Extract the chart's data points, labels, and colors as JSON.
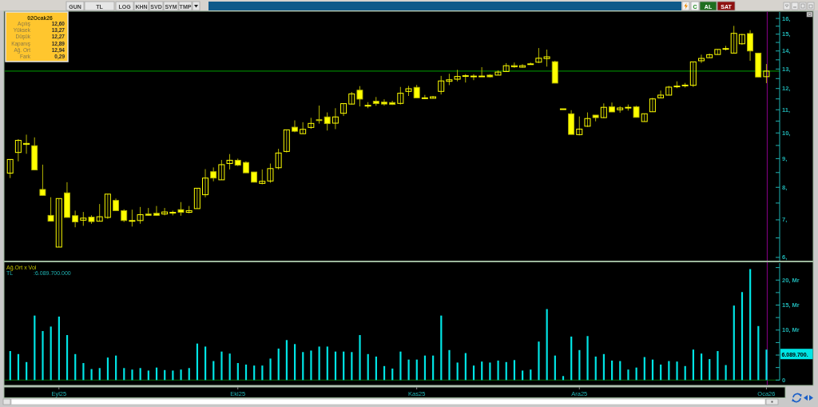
{
  "chart_data": [
    {
      "type": "candlestick",
      "log": true,
      "color": "#ffff00",
      "tick_labels": "y",
      "categories": [
        null,
        null,
        null,
        null,
        null,
        null,
        "Eyl25",
        null,
        null,
        null,
        null,
        null,
        null,
        null,
        null,
        null,
        null,
        null,
        null,
        null,
        null,
        null,
        null,
        null,
        null,
        null,
        null,
        null,
        "Eki25",
        null,
        null,
        null,
        null,
        null,
        null,
        null,
        null,
        null,
        null,
        null,
        null,
        null,
        null,
        null,
        null,
        null,
        null,
        null,
        null,
        null,
        "Kas25",
        null,
        null,
        null,
        null,
        null,
        null,
        null,
        null,
        null,
        null,
        null,
        null,
        null,
        null,
        null,
        null,
        null,
        null,
        null,
        "Ara25",
        null,
        null,
        null,
        null,
        null,
        null,
        null,
        null,
        null,
        null,
        null,
        null,
        null,
        null,
        null,
        null,
        null,
        null,
        null,
        null,
        null,
        null,
        "Oca26"
      ],
      "ohlc": [
        [
          8.48,
          8.97,
          8.31,
          8.97
        ],
        [
          9.23,
          9.75,
          8.9,
          9.7
        ],
        [
          9.54,
          9.93,
          9.18,
          9.58
        ],
        [
          9.49,
          9.82,
          8.59,
          8.59
        ],
        [
          7.93,
          8.78,
          7.74,
          7.74
        ],
        [
          7.13,
          7.68,
          6.96,
          6.96
        ],
        [
          6.26,
          7.64,
          6.26,
          7.64
        ],
        [
          7.82,
          8.17,
          7.07,
          7.07
        ],
        [
          7.12,
          7.27,
          6.79,
          6.94
        ],
        [
          6.99,
          7.23,
          6.83,
          7.05
        ],
        [
          7.08,
          7.13,
          6.89,
          6.95
        ],
        [
          6.96,
          7.47,
          6.96,
          7.09
        ],
        [
          7.07,
          7.78,
          7.03,
          7.78
        ],
        [
          7.58,
          7.64,
          7.27,
          7.27
        ],
        [
          7.27,
          7.31,
          6.94,
          6.98
        ],
        [
          6.98,
          7.3,
          6.81,
          6.98
        ],
        [
          6.98,
          7.38,
          6.89,
          7.15
        ],
        [
          7.17,
          7.35,
          7.12,
          7.13
        ],
        [
          7.19,
          7.41,
          7.12,
          7.13
        ],
        [
          7.17,
          7.35,
          7.13,
          7.23
        ],
        [
          7.22,
          7.27,
          7.13,
          7.22
        ],
        [
          7.3,
          7.53,
          7.12,
          7.22
        ],
        [
          7.22,
          7.41,
          7.19,
          7.27
        ],
        [
          7.33,
          7.97,
          7.33,
          7.97
        ],
        [
          7.76,
          8.62,
          7.68,
          8.31
        ],
        [
          8.53,
          8.68,
          8.2,
          8.31
        ],
        [
          8.25,
          8.95,
          8.25,
          8.78
        ],
        [
          8.82,
          9.17,
          8.61,
          8.94
        ],
        [
          8.94,
          9.0,
          8.73,
          8.76
        ],
        [
          8.86,
          8.9,
          8.49,
          8.49
        ],
        [
          8.52,
          8.52,
          8.17,
          8.17
        ],
        [
          8.13,
          8.61,
          8.1,
          8.2
        ],
        [
          8.21,
          8.82,
          8.15,
          8.64
        ],
        [
          8.67,
          9.37,
          8.61,
          9.21
        ],
        [
          9.27,
          10.13,
          9.23,
          10.13
        ],
        [
          10.24,
          10.53,
          10.03,
          10.07
        ],
        [
          9.97,
          10.45,
          9.97,
          10.15
        ],
        [
          10.23,
          10.64,
          10.17,
          10.4
        ],
        [
          10.56,
          11.19,
          10.39,
          10.52
        ],
        [
          10.68,
          10.88,
          10.1,
          10.39
        ],
        [
          10.41,
          11.07,
          10.16,
          10.68
        ],
        [
          10.84,
          11.28,
          10.72,
          11.28
        ],
        [
          11.26,
          11.83,
          11.24,
          11.74
        ],
        [
          11.92,
          12.12,
          11.15,
          11.49
        ],
        [
          11.2,
          11.35,
          11.07,
          11.2
        ],
        [
          11.39,
          11.59,
          11.18,
          11.28
        ],
        [
          11.35,
          11.48,
          11.19,
          11.26
        ],
        [
          11.33,
          11.41,
          11.22,
          11.24
        ],
        [
          11.29,
          12.08,
          11.24,
          11.77
        ],
        [
          11.86,
          12.13,
          11.64,
          11.99
        ],
        [
          12.06,
          12.18,
          11.55,
          11.55
        ],
        [
          11.55,
          11.69,
          11.49,
          11.55
        ],
        [
          11.53,
          11.64,
          11.52,
          11.6
        ],
        [
          11.86,
          12.64,
          11.71,
          12.38
        ],
        [
          12.36,
          12.75,
          12.17,
          12.44
        ],
        [
          12.47,
          12.96,
          12.36,
          12.61
        ],
        [
          12.65,
          12.73,
          12.3,
          12.65
        ],
        [
          12.63,
          12.73,
          12.42,
          12.63
        ],
        [
          12.62,
          13.1,
          12.62,
          12.63
        ],
        [
          12.68,
          12.73,
          12.56,
          12.59
        ],
        [
          12.68,
          12.93,
          12.68,
          12.84
        ],
        [
          12.87,
          13.32,
          12.87,
          13.18
        ],
        [
          13.12,
          13.35,
          13.07,
          13.18
        ],
        [
          13.1,
          13.26,
          13.08,
          13.18
        ],
        [
          13.28,
          13.35,
          13.25,
          13.28
        ],
        [
          13.37,
          14.17,
          13.32,
          13.59
        ],
        [
          13.57,
          14.08,
          13.13,
          13.67
        ],
        [
          13.4,
          13.45,
          12.27,
          12.27
        ],
        [
          11.04,
          11.04,
          11.04,
          11.04
        ],
        [
          10.82,
          10.98,
          9.94,
          9.94
        ],
        [
          9.93,
          10.7,
          9.9,
          10.16
        ],
        [
          10.28,
          10.88,
          10.25,
          10.61
        ],
        [
          10.76,
          10.76,
          10.49,
          10.65
        ],
        [
          10.65,
          11.29,
          10.63,
          11.11
        ],
        [
          11.13,
          11.33,
          10.9,
          10.9
        ],
        [
          11.0,
          11.16,
          10.87,
          11.08
        ],
        [
          11.11,
          11.24,
          10.96,
          11.11
        ],
        [
          11.13,
          11.18,
          10.66,
          10.66
        ],
        [
          10.48,
          10.82,
          10.48,
          10.82
        ],
        [
          10.91,
          11.55,
          10.91,
          11.5
        ],
        [
          11.55,
          11.9,
          11.55,
          11.68
        ],
        [
          11.68,
          12.13,
          11.68,
          12.07
        ],
        [
          12.12,
          12.36,
          12.02,
          12.12
        ],
        [
          12.17,
          12.28,
          12.05,
          12.17
        ],
        [
          12.16,
          13.39,
          12.08,
          13.39
        ],
        [
          13.45,
          13.79,
          13.33,
          13.58
        ],
        [
          13.62,
          13.85,
          13.62,
          13.79
        ],
        [
          13.8,
          14.09,
          13.8,
          14.09
        ],
        [
          14.14,
          14.3,
          14.03,
          14.14
        ],
        [
          13.88,
          15.52,
          13.88,
          15.05
        ],
        [
          14.42,
          15.02,
          14.36,
          14.98
        ],
        [
          15.04,
          15.25,
          13.45,
          14.0
        ],
        [
          13.88,
          13.88,
          12.58,
          12.58
        ],
        [
          12.6,
          13.27,
          12.27,
          12.89
        ]
      ],
      "ylim": [
        5.92,
        16.43
      ],
      "yticks": [
        {
          "value": 6,
          "label": "6,"
        },
        {
          "value": 6.5,
          "label": null
        },
        {
          "value": 7,
          "label": "7,"
        },
        {
          "value": 7.5,
          "label": null
        },
        {
          "value": 8,
          "label": "8,"
        },
        {
          "value": 8.5,
          "label": null
        },
        {
          "value": 9,
          "label": "9,"
        },
        {
          "value": 9.5,
          "label": null
        },
        {
          "value": 10,
          "label": "10,"
        },
        {
          "value": 10.5,
          "label": null
        },
        {
          "value": 11,
          "label": "11,"
        },
        {
          "value": 11.5,
          "label": null
        },
        {
          "value": 12,
          "label": "12,"
        },
        {
          "value": 12.5,
          "label": null
        },
        {
          "value": 13,
          "label": "13,"
        },
        {
          "value": 13.5,
          "label": null
        },
        {
          "value": 14,
          "label": "14,"
        },
        {
          "value": 14.5,
          "label": null
        },
        {
          "value": 15,
          "label": "15,"
        },
        {
          "value": 15.5,
          "label": null
        },
        {
          "value": 16,
          "label": "16,"
        }
      ],
      "ref_lines": [
        {
          "axis": "x",
          "value": "Oca26",
          "color": "#8b008b"
        },
        {
          "axis": "y",
          "value": 12.89,
          "color": "#00a000"
        }
      ]
    },
    {
      "type": "bar",
      "color": "#00e5e5",
      "title": "Ağ.Ort x Vol",
      "subtitle": "TL",
      "categories": [
        null,
        null,
        null,
        null,
        null,
        null,
        "Eyl25",
        null,
        null,
        null,
        null,
        null,
        null,
        null,
        null,
        null,
        null,
        null,
        null,
        null,
        null,
        null,
        null,
        null,
        null,
        null,
        null,
        null,
        "Eki25",
        null,
        null,
        null,
        null,
        null,
        null,
        null,
        null,
        null,
        null,
        null,
        null,
        null,
        null,
        null,
        null,
        null,
        null,
        null,
        null,
        null,
        "Kas25",
        null,
        null,
        null,
        null,
        null,
        null,
        null,
        null,
        null,
        null,
        null,
        null,
        null,
        null,
        null,
        null,
        null,
        null,
        null,
        "Ara25",
        null,
        null,
        null,
        null,
        null,
        null,
        null,
        null,
        null,
        null,
        null,
        null,
        null,
        null,
        null,
        null,
        null,
        null,
        null,
        null,
        null,
        null,
        "Oca26"
      ],
      "values": [
        5.8,
        5.2,
        3.6,
        12.9,
        9.8,
        10.7,
        12.7,
        9.0,
        5.2,
        3.4,
        2.2,
        2.4,
        4.5,
        4.9,
        2.4,
        2.1,
        2.4,
        1.9,
        2.5,
        2.0,
        1.9,
        2.1,
        2.4,
        7.3,
        6.7,
        3.8,
        5.7,
        5.3,
        3.4,
        3.1,
        2.9,
        2.9,
        4.3,
        6.3,
        8.0,
        7.2,
        5.6,
        5.9,
        6.7,
        6.7,
        5.7,
        5.7,
        5.6,
        9.0,
        5.2,
        4.7,
        2.8,
        2.3,
        5.7,
        4.1,
        4.1,
        4.9,
        4.9,
        12.9,
        6.0,
        3.5,
        5.4,
        2.9,
        3.7,
        3.5,
        3.9,
        3.6,
        4.0,
        1.9,
        2.1,
        7.7,
        14.2,
        4.9,
        0.8,
        8.7,
        6.0,
        8.8,
        4.7,
        5.2,
        3.9,
        3.8,
        2.1,
        2.5,
        4.6,
        4.1,
        3.1,
        3.8,
        3.7,
        2.8,
        6.1,
        5.3,
        4.2,
        5.8,
        3.0,
        14.9,
        17.6,
        22.2,
        10.8,
        6.0897
      ],
      "ylim": [
        0,
        23.4
      ],
      "yticks": [
        {
          "value": 0,
          "label": "0"
        },
        {
          "value": 2.5,
          "label": null
        },
        {
          "value": 5,
          "label": null
        },
        {
          "value": 7.5,
          "label": null
        },
        {
          "value": 10,
          "label": "10, Mr"
        },
        {
          "value": 12.5,
          "label": null
        },
        {
          "value": 15,
          "label": "15, Mr"
        },
        {
          "value": 17.5,
          "label": null
        },
        {
          "value": 20,
          "label": "20, Mr"
        },
        {
          "value": 22.5,
          "label": null
        }
      ],
      "ref_lines": [
        {
          "axis": "x",
          "value": "Oca26",
          "color": "#8b008b"
        }
      ],
      "annotations": [
        ":6.089.700.000",
        {
          "text": "6.089.700.",
          "x": "Oca26",
          "y": 6.0897
        }
      ]
    },
    {
      "type": "other",
      "title": "02Ocak26",
      "annotations": [
        "Açılış",
        "12,60",
        "Yüksek",
        "13,27",
        "Düşük",
        "12,27",
        "Kapanış",
        "12,89",
        "Ağ. Ort",
        "12,94",
        "Fark",
        "0,29"
      ]
    },
    {
      "type": "other",
      "annotations": [
        "GUN",
        "TL",
        "LOG",
        "KHN",
        "SVD",
        "SYM",
        "TMP",
        "C",
        "AL",
        "SAT"
      ]
    }
  ]
}
